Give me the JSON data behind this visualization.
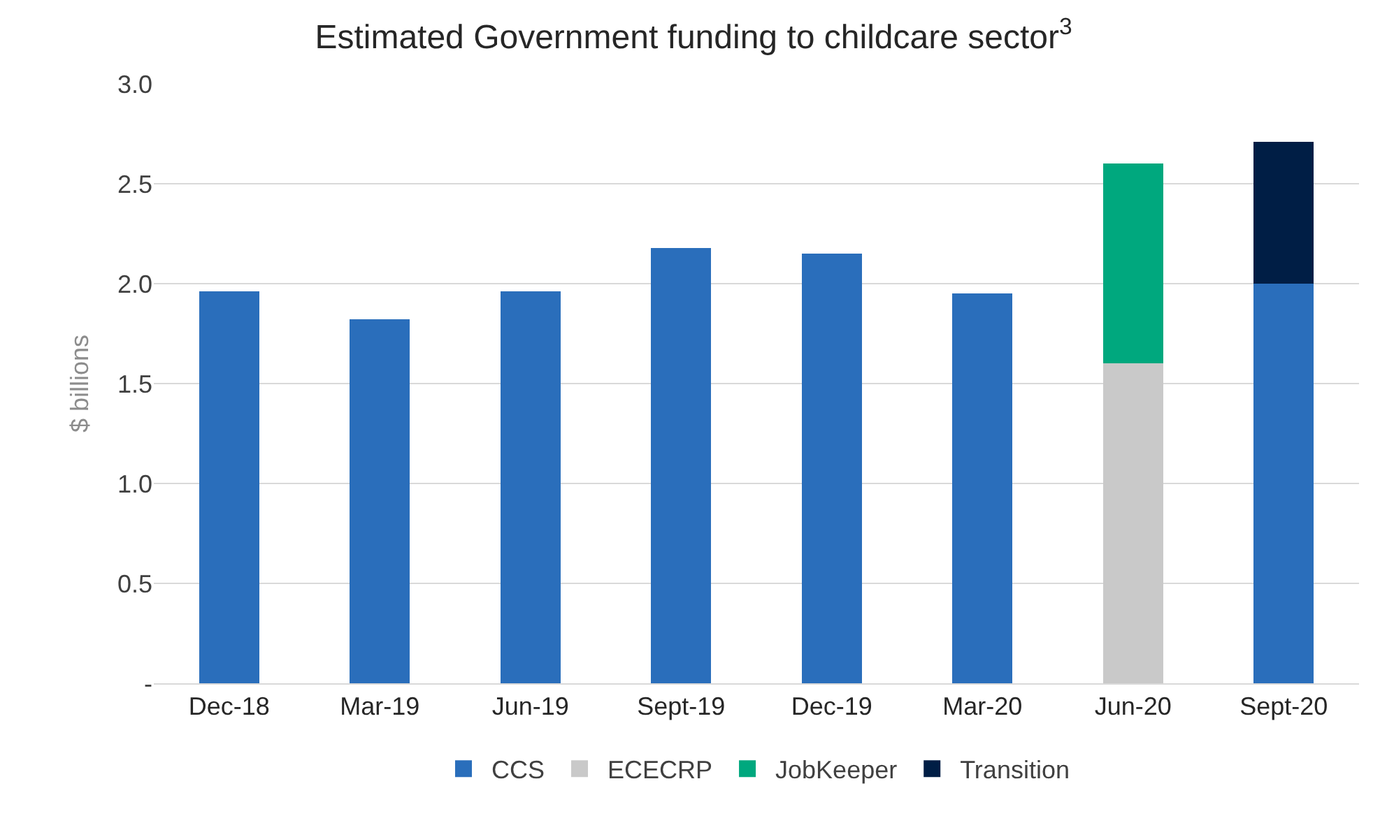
{
  "chart_data": {
    "type": "bar",
    "stacked": true,
    "title": "Estimated Government funding to childcare sector$^{3}$",
    "ylabel": "$ billions",
    "categories": [
      "Dec-18",
      "Mar-19",
      "Jun-19",
      "Sept-19",
      "Dec-19",
      "Mar-20",
      "Jun-20",
      "Sept-20"
    ],
    "series": [
      {
        "name": "CCS",
        "color": "#2a6ebb",
        "values": [
          1.96,
          1.82,
          1.96,
          2.18,
          2.15,
          1.95,
          null,
          2.0
        ]
      },
      {
        "name": "ECECRP",
        "color": "#c9c9c9",
        "values": [
          null,
          null,
          null,
          null,
          null,
          null,
          1.6,
          null
        ]
      },
      {
        "name": "JobKeeper",
        "color": "#00a87e",
        "values": [
          null,
          null,
          null,
          null,
          null,
          null,
          1.0,
          null
        ]
      },
      {
        "name": "Transition",
        "color": "#001e45",
        "values": [
          null,
          null,
          null,
          null,
          null,
          null,
          null,
          0.71
        ]
      }
    ],
    "ylim": [
      0,
      3.0
    ],
    "yticks": [
      {
        "value": 0,
        "label": "-"
      },
      0.5,
      {
        "value": 1.0,
        "label": "1.0"
      },
      1.5,
      {
        "value": 2.0,
        "label": "2.0"
      },
      2.5,
      {
        "value": 3.0,
        "label": "3.0"
      }
    ],
    "grid": "y",
    "legend": "bottom"
  }
}
